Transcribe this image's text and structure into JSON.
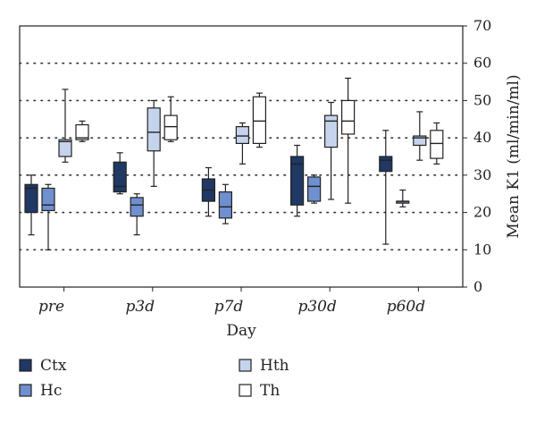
{
  "chart_data": {
    "type": "box",
    "xlabel": "Day",
    "ylabel": "Mean K1 (ml/min/ml)",
    "ylim": [
      0,
      70
    ],
    "yticks": [
      0,
      10,
      20,
      30,
      40,
      50,
      60,
      70
    ],
    "grid": "dotted horizontal",
    "y_axis_side": "right",
    "legend_position": "bottom",
    "categories": [
      "pre",
      "p3d",
      "p7d",
      "p30d",
      "p60d"
    ],
    "series": [
      {
        "name": "Ctx",
        "color": "#1f3864",
        "boxes": [
          {
            "min": 14,
            "q1": 20,
            "median": 26.5,
            "q3": 27.5,
            "max": 30
          },
          {
            "min": 25,
            "q1": 25.5,
            "median": 27,
            "q3": 33.5,
            "max": 36
          },
          {
            "min": 19,
            "q1": 23,
            "median": 26,
            "q3": 29,
            "max": 32
          },
          {
            "min": 19,
            "q1": 22,
            "median": 33,
            "q3": 35,
            "max": 38
          },
          {
            "min": 11.5,
            "q1": 31,
            "median": 34,
            "q3": 35,
            "max": 42
          }
        ]
      },
      {
        "name": "Hc",
        "color": "#6f8fcf",
        "boxes": [
          {
            "min": 10,
            "q1": 20.5,
            "median": 22,
            "q3": 26.5,
            "max": 27.5
          },
          {
            "min": 14,
            "q1": 19,
            "median": 22,
            "q3": 24,
            "max": 25
          },
          {
            "min": 17,
            "q1": 18.5,
            "median": 21.5,
            "q3": 25.5,
            "max": 27.5
          },
          {
            "min": 22.5,
            "q1": 23,
            "median": 27,
            "q3": 29.5,
            "max": 30
          },
          {
            "min": 21.5,
            "q1": 22.5,
            "median": 23,
            "q3": 23,
            "max": 26
          }
        ]
      },
      {
        "name": "Hth",
        "color": "#c5d3ec",
        "boxes": [
          {
            "min": 33.5,
            "q1": 35,
            "median": 39,
            "q3": 39.5,
            "max": 53
          },
          {
            "min": 27,
            "q1": 36.5,
            "median": 41.5,
            "q3": 48,
            "max": 50
          },
          {
            "min": 33,
            "q1": 38.5,
            "median": 40.5,
            "q3": 43,
            "max": 44
          },
          {
            "min": 23.5,
            "q1": 37.5,
            "median": 44.5,
            "q3": 46,
            "max": 49.5
          },
          {
            "min": 34,
            "q1": 38,
            "median": 40,
            "q3": 40.5,
            "max": 47
          }
        ]
      },
      {
        "name": "Th",
        "color": "#ffffff",
        "boxes": [
          {
            "min": 39,
            "q1": 39.5,
            "median": 40,
            "q3": 43.5,
            "max": 44.5
          },
          {
            "min": 39,
            "q1": 39.5,
            "median": 43,
            "q3": 46,
            "max": 51
          },
          {
            "min": 37.5,
            "q1": 38.5,
            "median": 44.5,
            "q3": 51,
            "max": 52
          },
          {
            "min": 22.5,
            "q1": 41,
            "median": 44.5,
            "q3": 50,
            "max": 56
          },
          {
            "min": 33,
            "q1": 34.5,
            "median": 38.5,
            "q3": 42,
            "max": 44
          }
        ]
      }
    ]
  }
}
